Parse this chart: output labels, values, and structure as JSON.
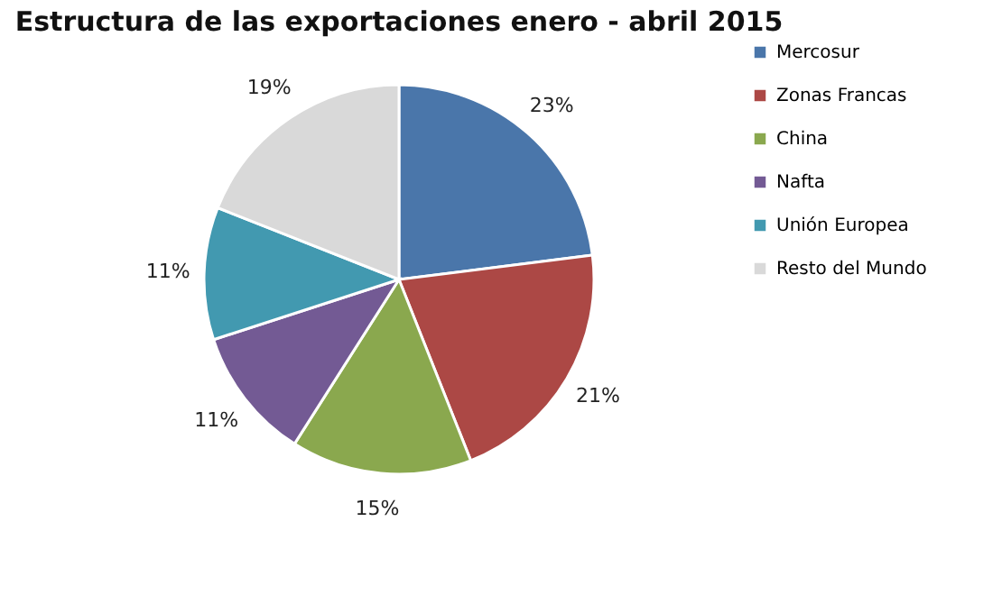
{
  "chart_data": {
    "type": "pie",
    "title": "Estructura  de las exportaciones enero - abril 2015",
    "categories": [
      "Mercosur",
      "Zonas Francas",
      "China",
      "Nafta",
      "Unión Europea",
      "Resto del Mundo"
    ],
    "values": [
      23,
      21,
      15,
      11,
      11,
      19
    ],
    "colors": [
      "#4a76aa",
      "#ac4845",
      "#8aa84e",
      "#735a94",
      "#4299b0",
      "#d9d9d9"
    ],
    "value_labels": [
      "23%",
      "21%",
      "15%",
      "11%",
      "11%",
      "19%"
    ],
    "legend": "right"
  }
}
